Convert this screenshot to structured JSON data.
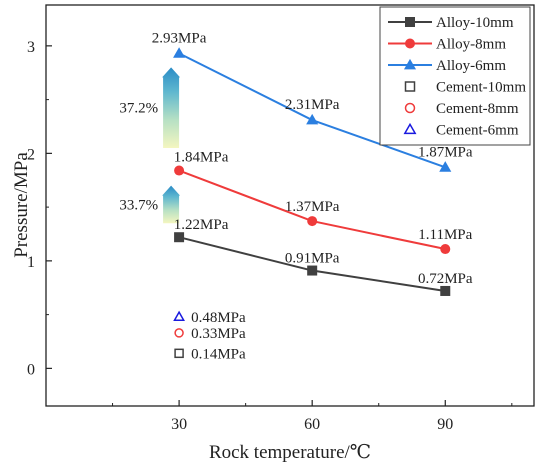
{
  "chart_data": {
    "type": "line",
    "title": "",
    "xlabel": "Rock temperature/℃",
    "ylabel": "Pressure/MPa",
    "x_ticks": [
      "30",
      "60",
      "90"
    ],
    "y_ticks": [
      "0",
      "1",
      "2",
      "3"
    ],
    "xlim": [
      0,
      110
    ],
    "ylim": [
      -0.35,
      3.38
    ],
    "grid": false,
    "legend_position": "top-right",
    "series": [
      {
        "name": "Alloy-10mm",
        "marker": "square",
        "filled": true,
        "color": "#404040",
        "x": [
          30,
          60,
          90
        ],
        "y": [
          1.22,
          0.91,
          0.72
        ],
        "labels": [
          "1.22MPa",
          "0.91MPa",
          "0.72MPa"
        ]
      },
      {
        "name": "Alloy-8mm",
        "marker": "circle",
        "filled": true,
        "color": "#ef3b3b",
        "x": [
          30,
          60,
          90
        ],
        "y": [
          1.84,
          1.37,
          1.11
        ],
        "labels": [
          "1.84MPa",
          "1.37MPa",
          "1.11MPa"
        ]
      },
      {
        "name": "Alloy-6mm",
        "marker": "triangle",
        "filled": true,
        "color": "#2b7fe0",
        "x": [
          30,
          60,
          90
        ],
        "y": [
          2.93,
          2.31,
          1.87
        ],
        "labels": [
          "2.93MPa",
          "2.31MPa",
          "1.87MPa"
        ]
      },
      {
        "name": "Cement-10mm",
        "marker": "square",
        "filled": false,
        "color": "#404040",
        "x": [
          30
        ],
        "y": [
          0.14
        ],
        "labels": [
          "0.14MPa"
        ]
      },
      {
        "name": "Cement-8mm",
        "marker": "circle",
        "filled": false,
        "color": "#ef3b3b",
        "x": [
          30
        ],
        "y": [
          0.33
        ],
        "labels": [
          "0.33MPa"
        ]
      },
      {
        "name": "Cement-6mm",
        "marker": "triangle",
        "filled": false,
        "color": "#1a1adf",
        "x": [
          30
        ],
        "y": [
          0.48
        ],
        "labels": [
          "0.48MPa"
        ]
      }
    ],
    "annotations": [
      {
        "text": "37.2%",
        "arrow_from": 2.05,
        "arrow_to": 2.8
      },
      {
        "text": "33.7%",
        "arrow_from": 1.35,
        "arrow_to": 1.7
      }
    ]
  }
}
